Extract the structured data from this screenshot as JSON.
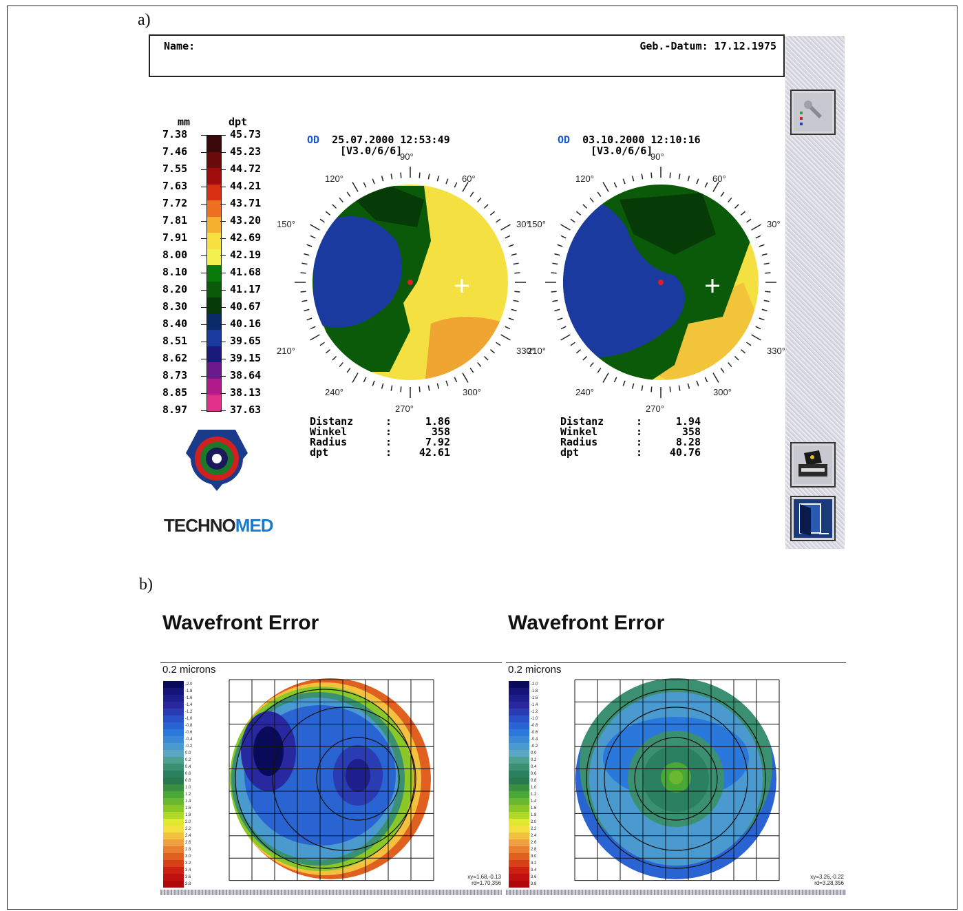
{
  "labels": {
    "a": "a)",
    "b": "b)"
  },
  "header": {
    "name_label": "Name:",
    "dob": "Geb.-Datum: 17.12.1975"
  },
  "scale": {
    "mm_header": "mm",
    "dpt_header": "dpt",
    "mm": [
      "7.38",
      "7.46",
      "7.55",
      "7.63",
      "7.72",
      "7.81",
      "7.91",
      "8.00",
      "8.10",
      "8.20",
      "8.30",
      "8.40",
      "8.51",
      "8.62",
      "8.73",
      "8.85",
      "8.97"
    ],
    "dpt": [
      "45.73",
      "45.23",
      "44.72",
      "44.21",
      "43.71",
      "43.20",
      "42.69",
      "42.19",
      "41.68",
      "41.17",
      "40.67",
      "40.16",
      "39.65",
      "39.15",
      "38.64",
      "38.13",
      "37.63"
    ],
    "colors": [
      "#3a0808",
      "#6a0a0a",
      "#a00c0c",
      "#d83010",
      "#ee7020",
      "#f6b030",
      "#f8e040",
      "#f4f050",
      "#0a7a0a",
      "#0a5a0a",
      "#063a06",
      "#0a2a6a",
      "#1a3aa0",
      "#1a1a7a",
      "#6a1a8a",
      "#b01a8a",
      "#e0308a"
    ]
  },
  "maps": [
    {
      "eye": "OD",
      "datetime": "25.07.2000  12:53:49",
      "version": "[V3.0/6/6]",
      "angles": {
        "a90": "90°",
        "a60": "60°",
        "a120": "120°",
        "a150": "150°",
        "a30": "30°",
        "a210": "210°",
        "a330": "330°",
        "a240": "240°",
        "a300": "300°",
        "a270": "270°"
      },
      "meas": {
        "distanz_label": "Distanz",
        "distanz": "1.86",
        "winkel_label": "Winkel",
        "winkel": "358",
        "radius_label": "Radius",
        "radius": "7.92",
        "dpt_label": "dpt",
        "dpt": "42.61"
      }
    },
    {
      "eye": "OD",
      "datetime": "03.10.2000  12:10:16",
      "version": "[V3.0/6/6]",
      "angles": {
        "a90": "90°",
        "a60": "60°",
        "a120": "120°",
        "a150": "150°",
        "a30": "30°",
        "a210": "210°",
        "a330": "330°",
        "a240": "240°",
        "a300": "300°",
        "a270": "270°"
      },
      "meas": {
        "distanz_label": "Distanz",
        "distanz": "1.94",
        "winkel_label": "Winkel",
        "winkel": "358",
        "radius_label": "Radius",
        "radius": "8.28",
        "dpt_label": "dpt",
        "dpt": "40.76"
      }
    }
  ],
  "brand": {
    "part1": "TECHNO",
    "part2": "MED"
  },
  "wavefront": [
    {
      "title": "Wavefront Error",
      "units": "0.2 microns",
      "xy": "xy=1.68,-0.13",
      "rd": "rd=1.70,356"
    },
    {
      "title": "Wavefront Error",
      "units": "0.2 microns",
      "xy": "xy=3.26,-0.22",
      "rd": "rd=3.28,356"
    }
  ],
  "wf_scale": {
    "values": [
      "-2.0",
      "-1.8",
      "-1.6",
      "-1.4",
      "-1.2",
      "-1.0",
      "-0.8",
      "-0.6",
      "-0.4",
      "-0.2",
      "0.0",
      "0.2",
      "0.4",
      "0.6",
      "0.8",
      "1.0",
      "1.2",
      "1.4",
      "1.6",
      "1.8",
      "2.0",
      "2.2",
      "2.4",
      "2.6",
      "2.8",
      "3.0",
      "3.2",
      "3.4",
      "3.6",
      "3.8"
    ],
    "colors": [
      "#0a0a5a",
      "#14147a",
      "#1e1e8c",
      "#2828a0",
      "#2a3cb4",
      "#2a50c8",
      "#2a64d2",
      "#2a78dc",
      "#3a8ad8",
      "#4a9ad0",
      "#5aa8c4",
      "#4ea090",
      "#3a9070",
      "#2a8060",
      "#2a7a50",
      "#3a9040",
      "#4aa838",
      "#6ab830",
      "#8ac828",
      "#b0d828",
      "#e0e830",
      "#f4e040",
      "#f4c040",
      "#f0a040",
      "#e88030",
      "#e06020",
      "#d84018",
      "#cc2010",
      "#c01010",
      "#b00808"
    ]
  }
}
